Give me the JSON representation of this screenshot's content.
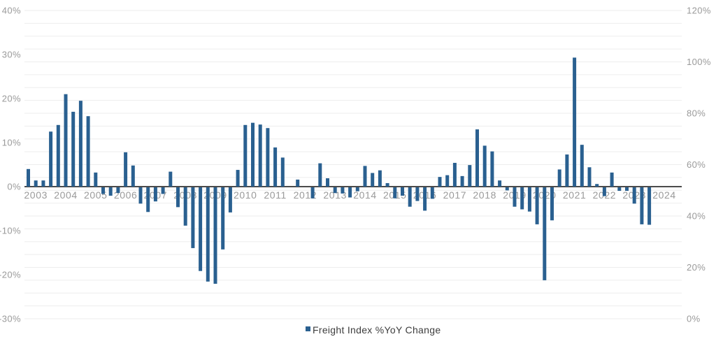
{
  "chart_data": {
    "type": "bar",
    "title": "",
    "series_name": "Freight Index %YoY Change",
    "bar_color": "#2a6090",
    "grid": true,
    "legend_position": "bottom",
    "left_axis": {
      "min": -30,
      "max": 40,
      "tick_values": [
        40,
        30,
        20,
        10,
        0,
        -10,
        -20,
        -30
      ],
      "tick_labels": [
        "40%",
        "30%",
        "20%",
        "10%",
        "0%",
        "-10%",
        "-20%",
        "-30%"
      ]
    },
    "right_axis": {
      "min": 0,
      "max": 120,
      "tick_values": [
        120,
        100,
        80,
        60,
        40,
        20,
        0
      ],
      "tick_labels": [
        "120%",
        "100%",
        "80%",
        "60%",
        "40%",
        "20%",
        "0%"
      ]
    },
    "x_year_labels": [
      "2003",
      "2004",
      "2005",
      "2006",
      "2007",
      "2008",
      "2009",
      "2010",
      "2011",
      "2012",
      "2013",
      "2014",
      "2015",
      "2016",
      "2017",
      "2018",
      "2019",
      "2020",
      "2021",
      "2022",
      "2023",
      "2024"
    ],
    "x": [
      "2003 Q1",
      "2003 Q2",
      "2003 Q3",
      "2003 Q4",
      "2004 Q1",
      "2004 Q2",
      "2004 Q3",
      "2004 Q4",
      "2005 Q1",
      "2005 Q2",
      "2005 Q3",
      "2005 Q4",
      "2006 Q1",
      "2006 Q2",
      "2006 Q3",
      "2006 Q4",
      "2007 Q1",
      "2007 Q2",
      "2007 Q3",
      "2007 Q4",
      "2008 Q1",
      "2008 Q2",
      "2008 Q3",
      "2008 Q4",
      "2009 Q1",
      "2009 Q2",
      "2009 Q3",
      "2009 Q4",
      "2010 Q1",
      "2010 Q2",
      "2010 Q3",
      "2010 Q4",
      "2011 Q1",
      "2011 Q2",
      "2011 Q3",
      "2011 Q4",
      "2012 Q1",
      "2012 Q2",
      "2012 Q3",
      "2012 Q4",
      "2013 Q1",
      "2013 Q2",
      "2013 Q3",
      "2013 Q4",
      "2014 Q1",
      "2014 Q2",
      "2014 Q3",
      "2014 Q4",
      "2015 Q1",
      "2015 Q2",
      "2015 Q3",
      "2015 Q4",
      "2016 Q1",
      "2016 Q2",
      "2016 Q3",
      "2016 Q4",
      "2017 Q1",
      "2017 Q2",
      "2017 Q3",
      "2017 Q4",
      "2018 Q1",
      "2018 Q2",
      "2018 Q3",
      "2018 Q4",
      "2019 Q1",
      "2019 Q2",
      "2019 Q3",
      "2019 Q4",
      "2020 Q1",
      "2020 Q2",
      "2020 Q3",
      "2020 Q4",
      "2021 Q1",
      "2021 Q2",
      "2021 Q3",
      "2021 Q4",
      "2022 Q1",
      "2022 Q2",
      "2022 Q3",
      "2022 Q4",
      "2023 Q1",
      "2023 Q2",
      "2023 Q3",
      "2023 Q4"
    ],
    "values": [
      4.0,
      1.4,
      1.4,
      12.5,
      14.0,
      21.0,
      17.0,
      19.5,
      16.0,
      3.2,
      -1.5,
      -1.9,
      -1.3,
      7.8,
      4.8,
      -3.7,
      -5.6,
      -3.2,
      -1.5,
      3.4,
      -4.5,
      -8.7,
      -13.8,
      -19.0,
      -21.4,
      -21.9,
      -14.1,
      -5.7,
      3.8,
      14.0,
      14.5,
      14.1,
      13.3,
      8.9,
      6.6,
      0,
      1.6,
      0,
      -2.5,
      5.3,
      1.9,
      -1.3,
      -1.4,
      -2.3,
      -0.9,
      4.7,
      3.1,
      3.7,
      0.8,
      -2.5,
      -1.9,
      -4.4,
      -3.1,
      -5.3,
      -2.6,
      2.2,
      2.6,
      5.4,
      2.4,
      4.9,
      13.0,
      9.3,
      8.0,
      1.4,
      -0.7,
      -4.4,
      -5.0,
      -5.5,
      -8.4,
      -21.1,
      -7.5,
      3.9,
      7.3,
      29.3,
      9.5,
      4.4,
      0.6,
      -2.0,
      3.2,
      -0.8,
      -0.8,
      -3.7,
      -8.4,
      -8.5
    ]
  },
  "legend": {
    "label": "Freight Index %YoY Change"
  },
  "colors": {
    "bar": "#2a6090",
    "grid_line": "#ededed",
    "zero_line": "#4b4b4b",
    "tick_text": "#9a9a9a",
    "legend_text": "#3d3d3d"
  }
}
